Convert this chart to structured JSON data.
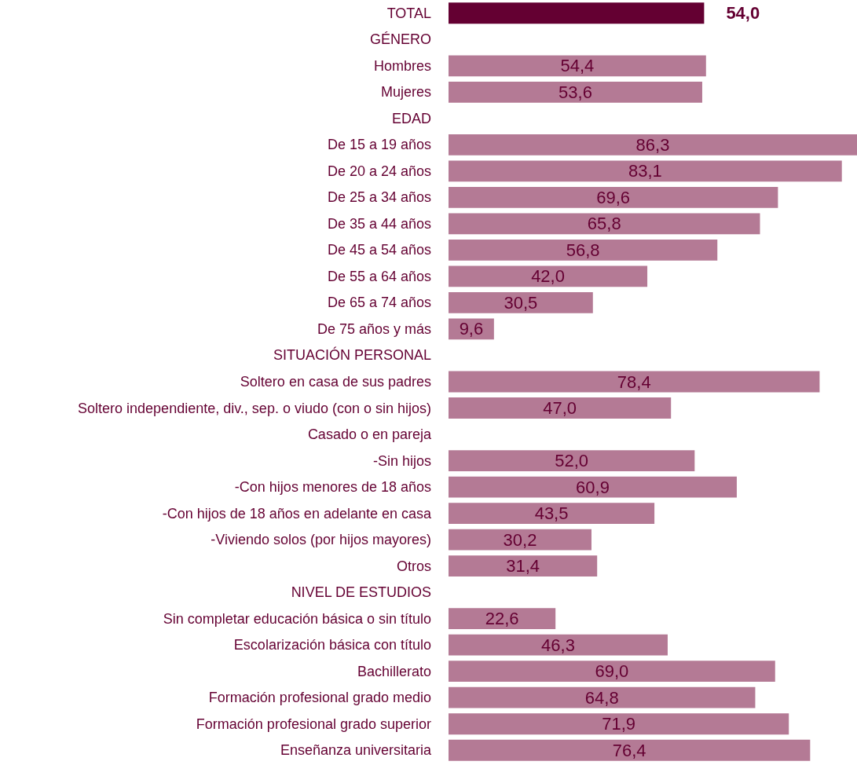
{
  "chart_data": {
    "type": "bar",
    "orientation": "horizontal",
    "tick_labels": "y",
    "categories": [
      "TOTAL",
      "GÉNERO",
      "Hombres",
      "Mujeres",
      "EDAD",
      "De 15 a 19 años",
      "De 20 a 24 años",
      "De 25 a 34 años",
      "De 35 a 44 años",
      "De 45 a 54 años",
      "De 55 a 64 años",
      "De 65 a 74 años",
      "De 75 años y más",
      "SITUACIÓN PERSONAL",
      "Soltero en casa de sus padres",
      "Soltero independiente, div., sep. o viudo (con o sin hijos)",
      "Casado o en pareja",
      "-Sin hijos",
      "-Con hijos menores de 18 años",
      "-Con hijos de 18 años en adelante en casa",
      "-Viviendo solos (por hijos mayores)",
      "Otros",
      "NIVEL DE ESTUDIOS",
      "Sin completar educación básica o sin título",
      "Escolarización básica con título",
      "Bachillerato",
      "Formación profesional grado medio",
      "Formación profesional grado superior",
      "Enseñanza universitaria"
    ],
    "values": [
      54.0,
      null,
      54.4,
      53.6,
      null,
      86.3,
      83.1,
      69.6,
      65.8,
      56.8,
      42.0,
      30.5,
      9.6,
      null,
      78.4,
      47.0,
      null,
      52.0,
      60.9,
      43.5,
      30.2,
      31.4,
      null,
      22.6,
      46.3,
      69.0,
      64.8,
      71.9,
      76.4
    ],
    "value_labels": [
      "54,0",
      null,
      "54,4",
      "53,6",
      null,
      "86,3",
      "83,1",
      "69,6",
      "65,8",
      "56,8",
      "42,0",
      "30,5",
      "9,6",
      null,
      "78,4",
      "47,0",
      null,
      "52,0",
      "60,9",
      "43,5",
      "30,2",
      "31,4",
      null,
      "22,6",
      "46,3",
      "69,0",
      "64,8",
      "71,9",
      "76,4"
    ],
    "colors": [
      "#640032",
      null,
      "#b47a95",
      "#b47a95",
      null,
      "#b47a95",
      "#b47a95",
      "#b47a95",
      "#b47a95",
      "#b47a95",
      "#b47a95",
      "#b47a95",
      "#b47a95",
      null,
      "#b47a95",
      "#b47a95",
      null,
      "#b47a95",
      "#b47a95",
      "#b47a95",
      "#b47a95",
      "#b47a95",
      null,
      "#b47a95",
      "#b47a95",
      "#b47a95",
      "#b47a95",
      "#b47a95",
      "#b47a95"
    ]
  }
}
